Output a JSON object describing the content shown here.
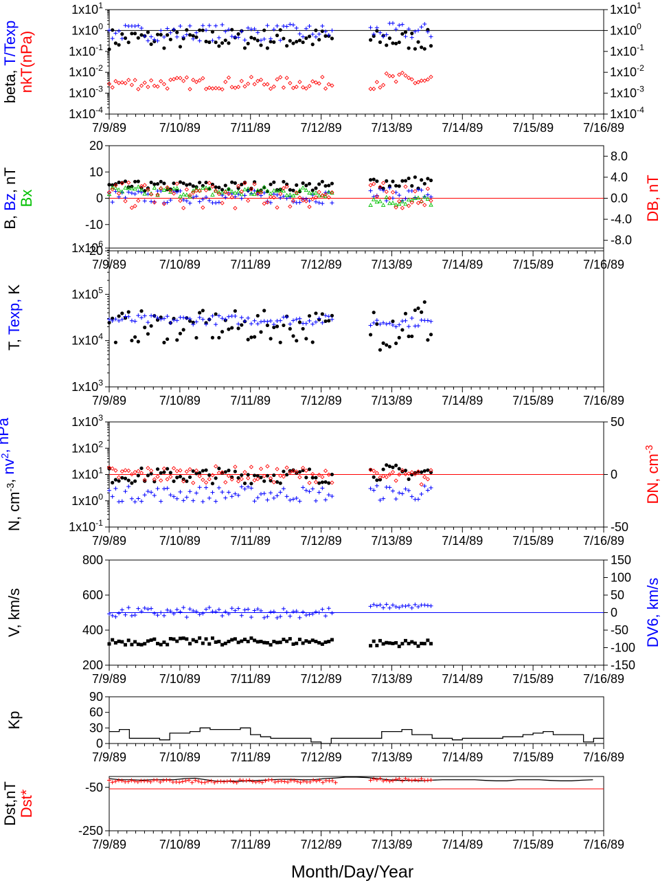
{
  "figure": {
    "xlabel": "Month/Day/Year",
    "x_ticks": [
      "7/9/89",
      "7/10/89",
      "7/11/89",
      "7/12/89",
      "7/13/89",
      "7/14/89",
      "7/15/89",
      "7/16/89"
    ],
    "colors": {
      "black": "#000000",
      "blue": "#0000ff",
      "red": "#ff0000",
      "green": "#00c000"
    }
  },
  "chart_data": [
    {
      "id": "p1",
      "type": "scatter",
      "yscale": "log",
      "ylim": [
        0.0001,
        10
      ],
      "ylabel_left": [
        {
          "text": "beta, ",
          "color": "#000000"
        },
        {
          "text": "T/Texp",
          "color": "#0000ff"
        }
      ],
      "ylabel_left2": [
        {
          "text": "nkT(nPa)",
          "color": "#ff0000"
        }
      ],
      "y_ticks": [
        {
          "v": 10,
          "m": "1x10",
          "e": "1"
        },
        {
          "v": 1,
          "m": "1x10",
          "e": "0"
        },
        {
          "v": 0.1,
          "m": "1x10",
          "e": "-1"
        },
        {
          "v": 0.01,
          "m": "1x10",
          "e": "-2"
        },
        {
          "v": 0.001,
          "m": "1x10",
          "e": "-3"
        },
        {
          "v": 0.0001,
          "m": "1x10",
          "e": "-4"
        }
      ],
      "right_ticks_mirror": true,
      "reference_line": {
        "value": 1,
        "color": "#000000"
      },
      "series": [
        {
          "name": "beta",
          "marker": "dot",
          "color": "#000000",
          "segments": [
            {
              "x0": 0.0,
              "x1": 3.2,
              "base": 0.4,
              "spread": 0.5
            },
            {
              "x0": 3.7,
              "x1": 4.6,
              "base": 0.35,
              "spread": 0.5
            }
          ]
        },
        {
          "name": "T/Texp",
          "marker": "plus",
          "color": "#0000ff",
          "segments": [
            {
              "x0": 0.0,
              "x1": 3.2,
              "base": 0.8,
              "spread": 0.4
            },
            {
              "x0": 3.7,
              "x1": 4.6,
              "base": 0.9,
              "spread": 0.4
            }
          ]
        },
        {
          "name": "nkT(nPa)",
          "marker": "diamond",
          "color": "#ff0000",
          "segments": [
            {
              "x0": 0.0,
              "x1": 3.2,
              "base": 0.003,
              "spread": 0.3
            },
            {
              "x0": 3.7,
              "x1": 4.6,
              "base": 0.004,
              "spread": 0.4
            }
          ]
        }
      ]
    },
    {
      "id": "p2",
      "type": "scatter",
      "yscale": "linear",
      "ylim": [
        -20,
        20
      ],
      "ylabel_left": [
        {
          "text": "B, ",
          "color": "#000000"
        },
        {
          "text": "Bz",
          "color": "#0000ff"
        },
        {
          "text": ", nT",
          "color": "#000000"
        }
      ],
      "ylabel_left2": [
        {
          "text": "Bx",
          "color": "#00c000"
        }
      ],
      "y_ticks": [
        {
          "v": 20,
          "t": "20"
        },
        {
          "v": 10,
          "t": "10"
        },
        {
          "v": 0,
          "t": "0"
        },
        {
          "v": -10,
          "t": "-10"
        },
        {
          "v": -20,
          "t": "-20"
        }
      ],
      "right_axis": {
        "label": "DB, nT",
        "color": "#ff0000",
        "ylim": [
          -10,
          10
        ],
        "ticks": [
          {
            "v": 8,
            "t": "8.0"
          },
          {
            "v": 4,
            "t": "4.0"
          },
          {
            "v": 0,
            "t": "0.0"
          },
          {
            "v": -4,
            "t": "-4.0"
          },
          {
            "v": -8,
            "t": "-8.0"
          }
        ]
      },
      "reference_line": {
        "value": 0,
        "color": "#ff0000"
      },
      "series": [
        {
          "name": "B",
          "marker": "dot",
          "color": "#000000",
          "segments": [
            {
              "x0": 0.0,
              "x1": 3.2,
              "base": 4.5,
              "spread": 2.0
            },
            {
              "x0": 3.7,
              "x1": 4.6,
              "base": 6.0,
              "spread": 2.5
            }
          ]
        },
        {
          "name": "Bz",
          "marker": "plus",
          "color": "#0000ff",
          "segments": [
            {
              "x0": 0.0,
              "x1": 3.2,
              "base": 0.5,
              "spread": 2.5
            },
            {
              "x0": 3.7,
              "x1": 4.6,
              "base": 1.5,
              "spread": 2.5
            }
          ]
        },
        {
          "name": "Bx",
          "marker": "triangle",
          "color": "#00c000",
          "segments": [
            {
              "x0": 0.0,
              "x1": 3.2,
              "base": 2.5,
              "spread": 2.0
            },
            {
              "x0": 3.7,
              "x1": 4.6,
              "base": -1.0,
              "spread": 2.0
            }
          ]
        },
        {
          "name": "DB",
          "marker": "diamond",
          "color": "#ff0000",
          "axis": "right",
          "segments": [
            {
              "x0": 0.0,
              "x1": 3.2,
              "base": 0.5,
              "spread": 2.5
            },
            {
              "x0": 3.7,
              "x1": 4.6,
              "base": 0.5,
              "spread": 2.5
            }
          ]
        }
      ]
    },
    {
      "id": "p3",
      "type": "scatter",
      "yscale": "log",
      "ylim": [
        1000,
        1000000
      ],
      "ylabel_left": [
        {
          "text": "T, ",
          "color": "#000000"
        },
        {
          "text": "Texp, ",
          "color": "#0000ff"
        },
        {
          "text": "K",
          "color": "#000000"
        }
      ],
      "y_ticks": [
        {
          "v": 1000000,
          "m": "1x10",
          "e": "6"
        },
        {
          "v": 100000,
          "m": "1x10",
          "e": "5"
        },
        {
          "v": 10000,
          "m": "1x10",
          "e": "4"
        },
        {
          "v": 1000,
          "m": "1x10",
          "e": "3"
        }
      ],
      "series": [
        {
          "name": "T",
          "marker": "dot",
          "color": "#000000",
          "segments": [
            {
              "x0": 0.0,
              "x1": 3.2,
              "base": 20000,
              "spread": 0.35
            },
            {
              "x0": 3.7,
              "x1": 4.6,
              "base": 25000,
              "spread": 0.6
            }
          ]
        },
        {
          "name": "Texp",
          "marker": "plus",
          "color": "#0000ff",
          "segments": [
            {
              "x0": 0.0,
              "x1": 3.2,
              "base": 28000,
              "spread": 0.1
            },
            {
              "x0": 3.7,
              "x1": 4.6,
              "base": 25000,
              "spread": 0.1
            }
          ]
        }
      ]
    },
    {
      "id": "p4",
      "type": "scatter",
      "yscale": "log",
      "ylim": [
        0.1,
        1000
      ],
      "ylabel_left": [
        {
          "text": "N, cm",
          "color": "#000000",
          "sup": "-3"
        },
        {
          "text": ", ",
          "color": "#000000"
        },
        {
          "text": "nv",
          "color": "#0000ff",
          "sup": "2"
        },
        {
          "text": ", nPa",
          "color": "#0000ff"
        }
      ],
      "y_ticks": [
        {
          "v": 1000,
          "m": "1x10",
          "e": "3"
        },
        {
          "v": 100,
          "m": "1x10",
          "e": "2"
        },
        {
          "v": 10,
          "m": "1x10",
          "e": "1"
        },
        {
          "v": 1,
          "m": "1x10",
          "e": "0"
        },
        {
          "v": 0.1,
          "m": "1x10",
          "e": "-1"
        }
      ],
      "right_axis": {
        "label": "DN, cm",
        "label_sup": "-3",
        "color": "#ff0000",
        "ylim": [
          -50,
          50
        ],
        "ticks": [
          {
            "v": 50,
            "t": "50"
          },
          {
            "v": 0,
            "t": "0"
          },
          {
            "v": -50,
            "t": "-50"
          }
        ]
      },
      "reference_line": {
        "value": 10,
        "color": "#ff0000"
      },
      "series": [
        {
          "name": "N",
          "marker": "dot",
          "color": "#000000",
          "segments": [
            {
              "x0": 0.0,
              "x1": 3.2,
              "base": 9,
              "spread": 0.3
            },
            {
              "x0": 3.7,
              "x1": 4.6,
              "base": 12,
              "spread": 0.3
            }
          ]
        },
        {
          "name": "nv2",
          "marker": "plus",
          "color": "#0000ff",
          "segments": [
            {
              "x0": 0.0,
              "x1": 3.2,
              "base": 1.8,
              "spread": 0.3
            },
            {
              "x0": 3.7,
              "x1": 4.6,
              "base": 2.0,
              "spread": 0.3
            }
          ]
        },
        {
          "name": "DN",
          "marker": "diamond",
          "color": "#ff0000",
          "axis": "right",
          "segments": [
            {
              "x0": 0.0,
              "x1": 3.2,
              "base": 0,
              "spread": 8
            },
            {
              "x0": 3.7,
              "x1": 4.6,
              "base": -3,
              "spread": 8
            }
          ]
        }
      ]
    },
    {
      "id": "p5",
      "type": "scatter",
      "yscale": "linear",
      "ylim": [
        200,
        800
      ],
      "ylabel_left": [
        {
          "text": "V, km/s",
          "color": "#000000"
        }
      ],
      "y_ticks": [
        {
          "v": 800,
          "t": "800"
        },
        {
          "v": 600,
          "t": "600"
        },
        {
          "v": 400,
          "t": "400"
        },
        {
          "v": 200,
          "t": "200"
        }
      ],
      "right_axis": {
        "label": "DV6, km/s",
        "color": "#0000ff",
        "ylim": [
          -150,
          150
        ],
        "ticks": [
          {
            "v": 150,
            "t": "150"
          },
          {
            "v": 100,
            "t": "100"
          },
          {
            "v": 50,
            "t": "50"
          },
          {
            "v": 0,
            "t": "0"
          },
          {
            "v": -50,
            "t": "-50"
          },
          {
            "v": -100,
            "t": "-100"
          },
          {
            "v": -150,
            "t": "-150"
          }
        ]
      },
      "reference_line": {
        "value": 500,
        "color": "#0000ff"
      },
      "series": [
        {
          "name": "V",
          "marker": "square",
          "color": "#000000",
          "segments": [
            {
              "x0": 0.0,
              "x1": 3.2,
              "base": 335,
              "spread": 20
            },
            {
              "x0": 3.7,
              "x1": 4.6,
              "base": 325,
              "spread": 18
            }
          ]
        },
        {
          "name": "DV6",
          "marker": "plus",
          "color": "#0000ff",
          "axis": "right",
          "segments": [
            {
              "x0": 0.0,
              "x1": 3.2,
              "base": 0,
              "spread": 15
            },
            {
              "x0": 3.7,
              "x1": 4.6,
              "base": 18,
              "spread": 6
            }
          ]
        }
      ]
    },
    {
      "id": "p6",
      "type": "line",
      "yscale": "linear",
      "ylim": [
        0,
        90
      ],
      "ylabel_left": [
        {
          "text": "Kp",
          "color": "#000000"
        }
      ],
      "y_ticks": [
        {
          "v": 90,
          "t": "90"
        },
        {
          "v": 60,
          "t": "60"
        },
        {
          "v": 30,
          "t": "30"
        },
        {
          "v": 0,
          "t": "0"
        }
      ],
      "series": [
        {
          "name": "Kp",
          "color": "#000000",
          "step": true,
          "values": [
            23,
            27,
            10,
            10,
            10,
            7,
            20,
            20,
            23,
            30,
            27,
            27,
            27,
            30,
            17,
            13,
            10,
            10,
            10,
            10,
            3,
            0,
            10,
            10,
            10,
            10,
            10,
            23,
            23,
            27,
            17,
            17,
            10,
            10,
            7,
            10,
            10,
            10,
            10,
            13,
            13,
            17,
            20,
            23,
            17,
            17,
            17,
            3,
            10
          ]
        }
      ]
    },
    {
      "id": "p7",
      "type": "line",
      "yscale": "linear",
      "ylim": [
        -250,
        0
      ],
      "ylabel_left": [
        {
          "text": "Dst,nT",
          "color": "#000000"
        }
      ],
      "ylabel_left2": [
        {
          "text": "Dst*",
          "color": "#ff0000"
        }
      ],
      "y_ticks": [
        {
          "v": -50,
          "t": "-50"
        },
        {
          "v": -250,
          "t": "-250"
        }
      ],
      "reference_line": {
        "value": -57,
        "color": "#ff0000"
      },
      "series": [
        {
          "name": "Dst",
          "color": "#000000",
          "line": true,
          "values": [
            -10,
            -15,
            -15,
            -17,
            -15,
            -15,
            -15,
            -10,
            -8,
            -15,
            -22,
            -22,
            -22,
            -20,
            -18,
            -15,
            -13,
            -13,
            -15,
            -15,
            -10,
            -7,
            -3,
            -3,
            -5,
            -10,
            -15,
            -18,
            -18,
            -20,
            -17,
            -15,
            -15,
            -15,
            -15,
            -18,
            -20,
            -20,
            -15,
            -15,
            -15,
            -18,
            -20,
            -20,
            -17,
            -15
          ]
        },
        {
          "name": "Dst*",
          "marker": "plus",
          "color": "#ff0000",
          "segments": [
            {
              "x0": 0.0,
              "x1": 3.25,
              "base": -22,
              "spread": 6
            },
            {
              "x0": 3.7,
              "x1": 4.6,
              "base": -15,
              "spread": 7
            }
          ]
        }
      ]
    }
  ]
}
